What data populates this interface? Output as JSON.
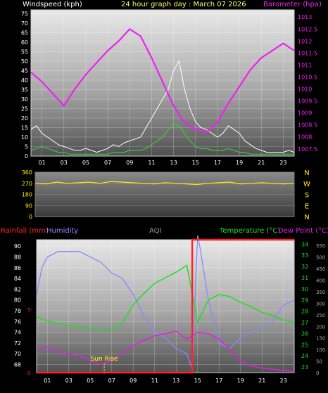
{
  "colors": {
    "background": "#000000",
    "wind": "#ffffff",
    "gust": "#33dd33",
    "barometer": "#ee22ee",
    "direction": "#ffee00",
    "humidity": "#8888ff",
    "temperature": "#22dd22",
    "dewpoint": "#dd22dd",
    "rainfall": "#ff2222",
    "aqi": "#999999",
    "sunrise": "#ffff00"
  },
  "chart_data": [
    {
      "type": "line",
      "title": "24 hour graph day : March 07 2026",
      "left_axis_label": "Windspeed (kph)",
      "right_axis_label": "Barometer (hpa)",
      "x_ticks": [
        "01",
        "03",
        "05",
        "07",
        "09",
        "11",
        "13",
        "15",
        "17",
        "19",
        "21",
        "23"
      ],
      "xlim": [
        0,
        24
      ],
      "y_left_ticks": [
        0,
        5,
        10,
        15,
        20,
        25,
        30,
        35,
        40,
        45,
        50,
        55,
        60,
        65,
        70,
        75
      ],
      "y_left_lim": [
        0,
        77
      ],
      "y_right_ticks": [
        1007.5,
        1008,
        1008.5,
        1009,
        1009.5,
        1010,
        1010.5,
        1011,
        1011.5,
        1012,
        1012.5,
        1013
      ],
      "y_right_lim": [
        1007.2,
        1013.3
      ],
      "grid": true,
      "series": [
        {
          "name": "Windspeed",
          "axis": "left",
          "x": [
            0,
            0.5,
            1,
            1.5,
            2,
            2.5,
            3,
            3.5,
            4,
            4.5,
            5,
            5.5,
            6,
            6.5,
            7,
            7.5,
            8,
            8.5,
            9,
            9.5,
            10,
            10.5,
            11,
            11.5,
            12,
            12.5,
            13,
            13.5,
            14,
            14.5,
            15,
            15.5,
            16,
            16.5,
            17,
            17.5,
            18,
            18.5,
            19,
            19.5,
            20,
            20.5,
            21,
            21.5,
            22,
            22.5,
            23,
            23.5,
            24
          ],
          "values": [
            14,
            16,
            12,
            10,
            8,
            6,
            5,
            4,
            3,
            3,
            4,
            3,
            2,
            3,
            4,
            6,
            5,
            7,
            8,
            9,
            10,
            15,
            20,
            25,
            30,
            35,
            45,
            50,
            35,
            25,
            18,
            15,
            14,
            12,
            10,
            12,
            16,
            14,
            12,
            8,
            6,
            4,
            3,
            2,
            2,
            2,
            2,
            3,
            2
          ]
        },
        {
          "name": "Gust",
          "axis": "left",
          "x": [
            0,
            0.5,
            1,
            1.5,
            2,
            2.5,
            3,
            3.5,
            4,
            4.5,
            5,
            5.5,
            6,
            6.5,
            7,
            7.5,
            8,
            8.5,
            9,
            9.5,
            10,
            10.5,
            11,
            11.5,
            12,
            12.5,
            13,
            13.5,
            14,
            14.5,
            15,
            15.5,
            16,
            16.5,
            17,
            17.5,
            18,
            18.5,
            19,
            19.5,
            20,
            20.5,
            21,
            21.5,
            22,
            22.5,
            23,
            23.5,
            24
          ],
          "values": [
            3,
            4,
            5,
            4,
            3,
            2,
            2,
            1,
            1,
            1,
            1,
            1,
            1,
            1,
            1,
            2,
            2,
            2,
            3,
            3,
            3,
            4,
            6,
            8,
            10,
            14,
            17,
            16,
            12,
            8,
            5,
            4,
            4,
            3,
            3,
            3,
            4,
            3,
            2,
            2,
            1,
            1,
            1,
            1,
            1,
            1,
            1,
            1,
            1
          ]
        },
        {
          "name": "Barometer",
          "axis": "right",
          "x": [
            0,
            1,
            2,
            3,
            4,
            5,
            6,
            7,
            8,
            9,
            10,
            11,
            12,
            13,
            14,
            15,
            16,
            17,
            18,
            19,
            20,
            21,
            22,
            23,
            24
          ],
          "values": [
            1010.7,
            1010.3,
            1009.8,
            1009.3,
            1010.0,
            1010.6,
            1011.1,
            1011.6,
            1012.0,
            1012.5,
            1012.2,
            1011.3,
            1010.3,
            1009.3,
            1008.6,
            1008.3,
            1008.2,
            1008.6,
            1009.4,
            1010.1,
            1010.8,
            1011.3,
            1011.6,
            1011.9,
            1011.6
          ]
        }
      ]
    },
    {
      "type": "line",
      "right_axis_labels": [
        "N",
        "W",
        "S",
        "E",
        "N"
      ],
      "y_left_ticks": [
        0,
        90,
        180,
        270,
        360
      ],
      "ylim": [
        0,
        360
      ],
      "grid": true,
      "series": [
        {
          "name": "Wind direction",
          "x": [
            0,
            1,
            2,
            3,
            4,
            5,
            6,
            7,
            8,
            9,
            10,
            11,
            12,
            13,
            14,
            15,
            16,
            17,
            18,
            19,
            20,
            21,
            22,
            23,
            24
          ],
          "values": [
            270,
            265,
            280,
            270,
            275,
            280,
            270,
            285,
            280,
            275,
            270,
            265,
            275,
            270,
            265,
            260,
            270,
            275,
            280,
            265,
            270,
            275,
            270,
            265,
            270
          ]
        }
      ]
    },
    {
      "type": "line",
      "header_labels": [
        "Rainfall (mm)",
        "Humidity",
        "AQI",
        "Temperature (°C)",
        "Dew Point (°C)"
      ],
      "x_ticks": [
        "01",
        "03",
        "05",
        "07",
        "09",
        "11",
        "13",
        "15",
        "17",
        "19",
        "21",
        "23"
      ],
      "xlim": [
        0,
        24
      ],
      "humidity_ticks": [
        68,
        70,
        72,
        74,
        76,
        78,
        80,
        82,
        84,
        86,
        88,
        90
      ],
      "humidity_lim": [
        66.5,
        91.2
      ],
      "rain_ticks": [
        0,
        5
      ],
      "rain_lim": [
        0,
        10.5
      ],
      "temperature_ticks": [
        23,
        24,
        25,
        26,
        27,
        28,
        29,
        30,
        31,
        32,
        33,
        34
      ],
      "temperature_lim": [
        22.5,
        34.4
      ],
      "aqi_ticks": [
        0,
        50,
        100,
        150,
        200,
        250,
        300,
        350,
        400,
        450,
        500,
        550
      ],
      "aqi_lim": [
        0,
        575
      ],
      "annotation": "Sun Rise",
      "sunrise_hour": 6.3,
      "grid": true,
      "series": [
        {
          "name": "Humidity",
          "axis": "humidity",
          "x": [
            0,
            0.5,
            1,
            2,
            3,
            4,
            5,
            6,
            7,
            8,
            9,
            10,
            11,
            12,
            13,
            14,
            14.5,
            15,
            15.2,
            16,
            17,
            18,
            19,
            20,
            21,
            22,
            23,
            24
          ],
          "values": [
            81,
            86,
            88,
            89,
            89,
            89,
            88,
            87,
            85,
            84,
            81,
            77,
            74,
            73,
            71,
            70,
            67.2,
            92,
            90,
            80,
            72,
            71,
            73,
            74,
            75,
            76,
            79,
            80
          ]
        },
        {
          "name": "Temperature",
          "axis": "temperature",
          "x": [
            0,
            1,
            2,
            3,
            4,
            5,
            6,
            7,
            8,
            9,
            10,
            11,
            12,
            13,
            14,
            15,
            16,
            17,
            18,
            19,
            20,
            21,
            22,
            23,
            24
          ],
          "values": [
            27.5,
            27.1,
            26.9,
            26.7,
            26.6,
            26.5,
            26.3,
            26.3,
            27.0,
            28.6,
            29.6,
            30.5,
            31.0,
            31.5,
            32.1,
            27.0,
            29.0,
            29.5,
            29.3,
            28.8,
            28.4,
            27.9,
            27.6,
            27.2,
            27.0
          ]
        },
        {
          "name": "Dew Point",
          "axis": "temperature",
          "x": [
            0,
            1,
            2,
            3,
            4,
            5,
            6,
            7,
            8,
            9,
            10,
            11,
            12,
            13,
            14,
            15,
            16,
            17,
            18,
            19,
            20,
            21,
            22,
            23,
            24
          ],
          "values": [
            24.6,
            24.8,
            24.4,
            24.2,
            24.0,
            23.6,
            23.2,
            23.6,
            24.2,
            24.9,
            25.4,
            25.8,
            26.0,
            26.2,
            25.5,
            26.1,
            26.0,
            25.5,
            24.6,
            23.5,
            23.1,
            22.9,
            22.8,
            22.7,
            22.6
          ]
        },
        {
          "name": "Rainfall",
          "axis": "rain",
          "x": [
            0,
            14.5,
            14.5,
            24
          ],
          "values": [
            0,
            0,
            10.5,
            10.5
          ]
        }
      ]
    }
  ]
}
